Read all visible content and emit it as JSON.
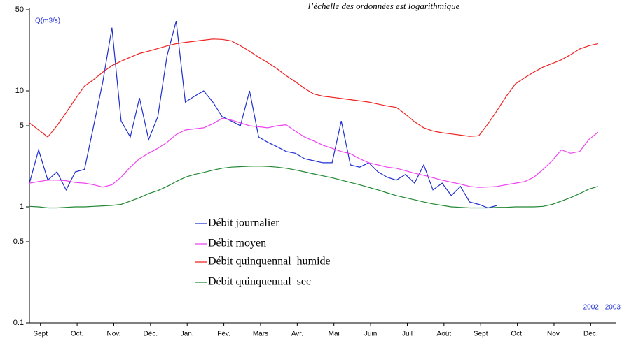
{
  "chart_data": {
    "type": "line",
    "note": "l’échelle des ordonnées est logarithmique",
    "ylabel": "Q(m3/s)",
    "period_label": "2002 - 2003",
    "log_scale": true,
    "ylim": [
      0.1,
      50
    ],
    "yticks": [
      0.1,
      0.5,
      1,
      5,
      10,
      50
    ],
    "xlim": [
      0,
      16
    ],
    "xticks": [
      {
        "value": 0.3,
        "label": "Sept"
      },
      {
        "value": 1.3,
        "label": "Oct."
      },
      {
        "value": 2.3,
        "label": "Nov."
      },
      {
        "value": 3.3,
        "label": "Déc."
      },
      {
        "value": 4.3,
        "label": "Jan."
      },
      {
        "value": 5.3,
        "label": "Fév."
      },
      {
        "value": 6.3,
        "label": "Mars"
      },
      {
        "value": 7.3,
        "label": "Avr."
      },
      {
        "value": 8.3,
        "label": "Mai"
      },
      {
        "value": 9.3,
        "label": "Juin"
      },
      {
        "value": 10.3,
        "label": "Juil"
      },
      {
        "value": 11.3,
        "label": "Août"
      },
      {
        "value": 12.3,
        "label": "Sept"
      },
      {
        "value": 13.3,
        "label": "Oct."
      },
      {
        "value": 14.3,
        "label": "Nov."
      },
      {
        "value": 15.3,
        "label": "Déc."
      }
    ],
    "x": [
      0,
      0.25,
      0.5,
      0.75,
      1,
      1.25,
      1.5,
      1.75,
      2,
      2.25,
      2.5,
      2.75,
      3,
      3.25,
      3.5,
      3.75,
      4,
      4.25,
      4.5,
      4.75,
      5,
      5.25,
      5.5,
      5.75,
      6,
      6.25,
      6.5,
      6.75,
      7,
      7.25,
      7.5,
      7.75,
      8,
      8.25,
      8.5,
      8.75,
      9,
      9.25,
      9.5,
      9.75,
      10,
      10.25,
      10.5,
      10.75,
      11,
      11.25,
      11.5,
      11.75,
      12,
      12.25,
      12.5,
      12.75,
      13,
      13.25,
      13.5,
      13.75,
      14,
      14.25,
      14.5,
      14.75,
      15,
      15.25,
      15.5,
      15.75,
      16
    ],
    "series": [
      {
        "name": "Débit journalier",
        "color": "#1f2fd0",
        "values": [
          1.6,
          3.1,
          1.7,
          2.0,
          1.4,
          2.0,
          2.1,
          5.0,
          12,
          35,
          5.5,
          4.0,
          8.7,
          3.8,
          6,
          20,
          40,
          8,
          9,
          10,
          8,
          6,
          5.5,
          5.0,
          10,
          4.0,
          3.6,
          3.3,
          3.0,
          2.9,
          2.6,
          2.5,
          2.4,
          2.4,
          5.5,
          2.3,
          2.2,
          2.4,
          2.0,
          1.8,
          1.7,
          1.9,
          1.6,
          2.3,
          1.4,
          1.6,
          1.25,
          1.5,
          1.1,
          1.05,
          0.98,
          1.03,
          null,
          null,
          null,
          null,
          null,
          null,
          null,
          null,
          null,
          null,
          null,
          null,
          null
        ]
      },
      {
        "name": "Débit moyen",
        "color": "#ee44ee",
        "values": [
          1.6,
          1.65,
          1.7,
          1.7,
          1.68,
          1.62,
          1.6,
          1.55,
          1.48,
          1.55,
          1.8,
          2.2,
          2.6,
          2.9,
          3.2,
          3.6,
          4.2,
          4.6,
          4.7,
          4.8,
          5.2,
          5.8,
          5.6,
          5.3,
          5.0,
          4.9,
          4.8,
          5.0,
          5.1,
          4.5,
          4.0,
          3.7,
          3.4,
          3.2,
          3.0,
          2.87,
          2.6,
          2.4,
          2.3,
          2.2,
          2.15,
          2.05,
          1.95,
          1.87,
          1.78,
          1.7,
          1.63,
          1.57,
          1.5,
          1.47,
          1.48,
          1.5,
          1.55,
          1.6,
          1.65,
          1.8,
          2.1,
          2.5,
          3.1,
          2.9,
          3.0,
          3.8,
          4.4,
          null,
          null
        ]
      },
      {
        "name": "Débit quinquennal  humide",
        "color": "#ee2222",
        "values": [
          5.3,
          4.6,
          4.0,
          5.0,
          6.5,
          8.5,
          11,
          12.5,
          14.5,
          16.5,
          18,
          19.5,
          21,
          22,
          23.2,
          24.4,
          25.5,
          26.2,
          26.8,
          27.4,
          28,
          27.8,
          27,
          24.5,
          22,
          19.5,
          17.5,
          15.5,
          13.5,
          12,
          10.5,
          9.4,
          9.0,
          8.8,
          8.6,
          8.4,
          8.2,
          8.0,
          7.7,
          7.4,
          7.2,
          6.3,
          5.4,
          4.8,
          4.5,
          4.35,
          4.25,
          4.15,
          4.05,
          4.1,
          5.2,
          6.8,
          9,
          11.5,
          13,
          14.5,
          16,
          17.2,
          18.5,
          20.5,
          23,
          24.5,
          25.5,
          null,
          null
        ]
      },
      {
        "name": "Débit quinquennal  sec",
        "color": "#228833",
        "values": [
          1.01,
          1.0,
          0.98,
          0.98,
          0.99,
          1.0,
          1.0,
          1.01,
          1.02,
          1.03,
          1.05,
          1.12,
          1.2,
          1.3,
          1.38,
          1.5,
          1.65,
          1.8,
          1.9,
          1.98,
          2.07,
          2.15,
          2.2,
          2.22,
          2.24,
          2.25,
          2.23,
          2.2,
          2.15,
          2.08,
          2.0,
          1.92,
          1.85,
          1.78,
          1.7,
          1.62,
          1.55,
          1.47,
          1.4,
          1.32,
          1.25,
          1.2,
          1.15,
          1.1,
          1.06,
          1.03,
          1.0,
          0.99,
          0.98,
          0.98,
          0.98,
          0.99,
          0.99,
          1.0,
          1.0,
          1.0,
          1.01,
          1.05,
          1.12,
          1.2,
          1.3,
          1.42,
          1.5,
          null,
          null
        ]
      }
    ]
  }
}
